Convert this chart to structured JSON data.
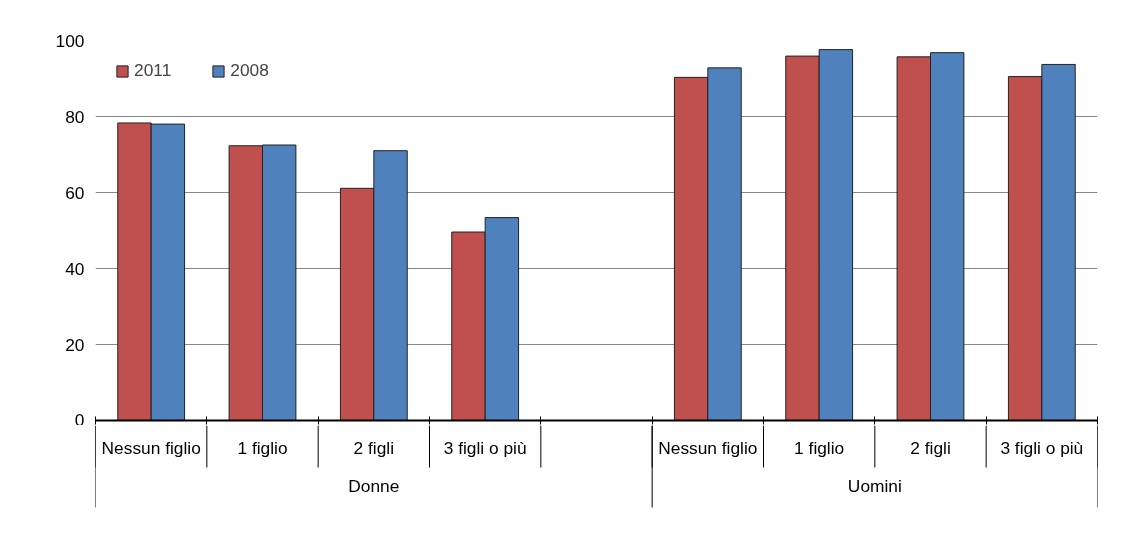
{
  "chart_data": {
    "type": "bar",
    "categories": [
      "Nessun figlio",
      "1 figlio",
      "2 figli",
      "3 figli o più",
      null,
      "Nessun figlio",
      "1 figlio",
      "2 figli",
      "3 figli o più"
    ],
    "series": [
      {
        "name": "2011",
        "color": "#c0504d",
        "values": [
          78.3,
          72.3,
          61.1,
          49.6,
          null,
          90.3,
          95.9,
          95.7,
          90.5
        ]
      },
      {
        "name": "2008",
        "color": "#4f81bd",
        "values": [
          78.0,
          72.5,
          71.0,
          53.4,
          null,
          92.8,
          97.6,
          96.8,
          93.7
        ]
      }
    ],
    "annotations": [
      "Donne",
      "Uomini"
    ],
    "ylim": [
      0,
      100
    ],
    "yticks": [
      0,
      20,
      40,
      60,
      80,
      100
    ],
    "grid": "y",
    "legend": "top left"
  }
}
